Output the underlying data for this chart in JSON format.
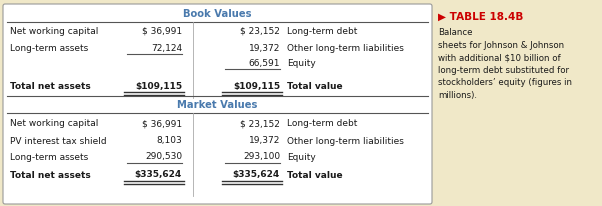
{
  "bg_color": "#f0e8c8",
  "table_bg": "#ffffff",
  "header_color": "#4a7aad",
  "title_color": "#cc0000",
  "book_header": "Book Values",
  "market_header": "Market Values",
  "sidebar_title": "▶ TABLE 18.4B",
  "sidebar_text": "Balance\nsheets for Johnson & Johnson\nwith additional $10 billion of\nlong-term debt substituted for\nstockholders’ equity (figures in\nmillions).",
  "book_rows": [
    [
      "Net working capital",
      "$ 36,991",
      "$ 23,152",
      "Long-term debt"
    ],
    [
      "Long-term assets",
      "72,124",
      "19,372",
      "Other long-term liabilities"
    ],
    [
      "",
      "",
      "66,591",
      "Equity"
    ],
    [
      "Total net assets",
      "$109,115",
      "$109,115",
      "Total value"
    ]
  ],
  "market_rows": [
    [
      "Net working capital",
      "$ 36,991",
      "$ 23,152",
      "Long-term debt"
    ],
    [
      "PV interest tax shield",
      "8,103",
      "19,372",
      "Other long-term liabilities"
    ],
    [
      "Long-term assets",
      "290,530",
      "293,100",
      "Equity"
    ],
    [
      "Total net assets",
      "$335,624",
      "$335,624",
      "Total value"
    ]
  ]
}
